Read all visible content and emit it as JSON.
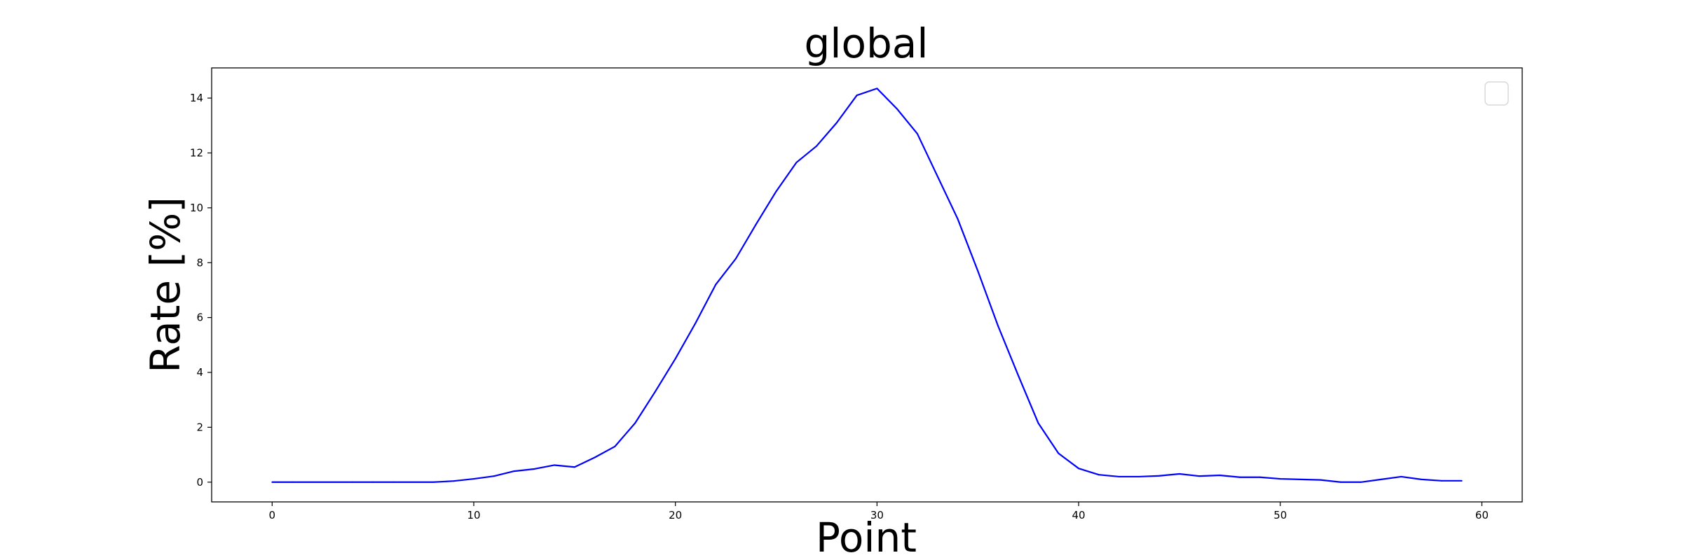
{
  "chart_data": {
    "type": "line",
    "title": "global",
    "xlabel": "Point",
    "ylabel": "Rate [%]",
    "xlim": [
      -3,
      62
    ],
    "ylim": [
      -0.72,
      15.1
    ],
    "xticks": [
      0,
      10,
      20,
      30,
      40,
      50,
      60
    ],
    "yticks": [
      0,
      2,
      4,
      6,
      8,
      10,
      12,
      14
    ],
    "grid": false,
    "legend": "top-right",
    "line_color": "#0000ff",
    "series": [
      {
        "x": [
          0,
          1,
          2,
          3,
          4,
          5,
          6,
          7,
          8,
          9,
          10,
          11,
          12,
          13,
          14,
          15,
          16,
          17,
          18,
          19,
          20,
          21,
          22,
          23,
          24,
          25,
          26,
          27,
          28,
          29,
          30,
          31,
          32,
          33,
          34,
          35,
          36,
          37,
          38,
          39,
          40,
          41,
          42,
          43,
          44,
          45,
          46,
          47,
          48,
          49,
          50,
          51,
          52,
          53,
          54,
          55,
          56,
          57,
          58,
          59
        ],
        "values": [
          0,
          0,
          0,
          0,
          0,
          0,
          0,
          0,
          0,
          0.04,
          0.12,
          0.22,
          0.4,
          0.48,
          0.62,
          0.55,
          0.9,
          1.3,
          2.15,
          3.3,
          4.5,
          5.8,
          7.2,
          8.15,
          9.4,
          10.6,
          11.65,
          12.25,
          13.1,
          14.1,
          14.35,
          13.6,
          12.7,
          11.15,
          9.6,
          7.7,
          5.7,
          3.9,
          2.15,
          1.05,
          0.5,
          0.27,
          0.2,
          0.2,
          0.23,
          0.3,
          0.22,
          0.25,
          0.18,
          0.18,
          0.12,
          0.1,
          0.08,
          0,
          0,
          0.1,
          0.2,
          0.1,
          0.05,
          0.05
        ]
      }
    ]
  }
}
